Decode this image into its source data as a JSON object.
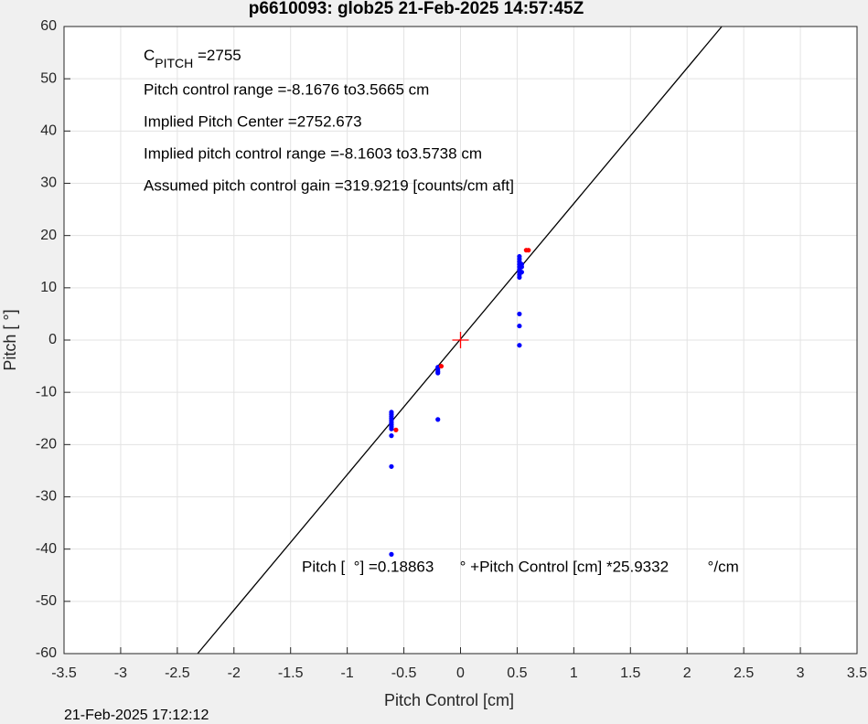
{
  "chart_data": {
    "type": "scatter",
    "title": "p6610093: glob25 21-Feb-2025 14:57:45Z",
    "xlabel": "Pitch Control [cm]",
    "ylabel": "Pitch [  °]",
    "timestamp": "21-Feb-2025 17:12:12",
    "xlim": [
      -3.5,
      3.5
    ],
    "ylim": [
      -60,
      60
    ],
    "xticks": [
      -3.5,
      -3,
      -2.5,
      -2,
      -1.5,
      -1,
      -0.5,
      0,
      0.5,
      1,
      1.5,
      2,
      2.5,
      3,
      3.5
    ],
    "yticks": [
      -60,
      -50,
      -40,
      -30,
      -20,
      -10,
      0,
      10,
      20,
      30,
      40,
      50,
      60
    ],
    "grid": true,
    "annotations": {
      "c_pitch": {
        "base": "C",
        "sub": "PITCH",
        "rest": " =2755"
      },
      "lines": [
        "Pitch control range =-8.1676 to3.5665 cm",
        "Implied Pitch Center =2752.673",
        "Implied pitch control range =-8.1603 to3.5738 cm",
        "Assumed pitch control gain =319.9219 [counts/cm aft]"
      ],
      "fit_text": "Pitch [  °] =0.18863      ° +Pitch Control [cm] *25.9332         °/cm"
    },
    "fit": {
      "intercept": 0.18863,
      "slope": 25.9332,
      "color": "#000000"
    },
    "series": [
      {
        "color": "#0000ff",
        "marker": "dot",
        "x": [
          -0.61,
          -0.61,
          -0.61,
          -0.61,
          -0.61,
          -0.61,
          -0.61,
          -0.61,
          -0.61,
          -0.61,
          -0.61,
          -0.61,
          -0.2,
          -0.2,
          -0.2,
          -0.2,
          -0.2,
          0.52,
          0.52,
          0.52,
          0.52,
          0.52,
          0.52,
          0.52,
          0.52,
          0.52,
          0.52,
          0.52,
          0.52,
          0.54,
          0.54,
          0.54
        ],
        "values": [
          -13.8,
          -14.2,
          -14.6,
          -15,
          -15.4,
          -15.8,
          -16.2,
          -16.6,
          -17,
          -18.3,
          -24.2,
          -41,
          -5.2,
          -5.6,
          -6,
          -6.3,
          -15.2,
          5,
          2.7,
          -1,
          12,
          12.5,
          13,
          13.5,
          14,
          14.5,
          15,
          15.5,
          16,
          13,
          14,
          14.5
        ]
      },
      {
        "color": "#ff0000",
        "marker": "dot",
        "x": [
          -0.57,
          -0.17,
          0.58,
          0.6
        ],
        "values": [
          -17.2,
          -5,
          17.2,
          17.2
        ]
      },
      {
        "color": "#ff0000",
        "marker": "plus",
        "x": [
          0
        ],
        "values": [
          0
        ]
      }
    ]
  }
}
